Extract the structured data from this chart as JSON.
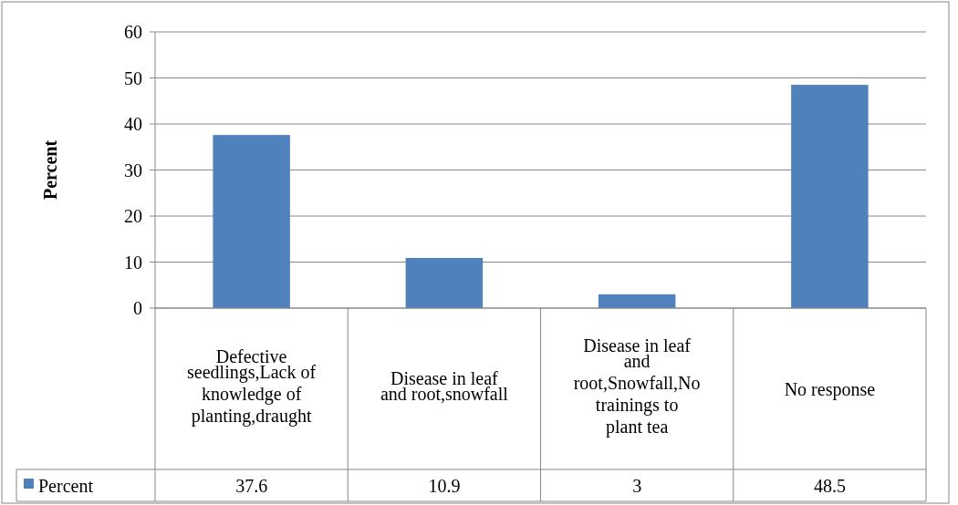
{
  "chart_data": {
    "type": "bar",
    "ylabel": "Percent",
    "categories": [
      "Defective seedlings,Lack of knowledge of planting,draught",
      "Disease in leaf and root,snowfall",
      "Disease in leaf and root,Snowfall,No trainings to plant tea",
      "No response"
    ],
    "series": [
      {
        "name": "Percent",
        "color": "#4f81bd",
        "values": [
          37.6,
          10.9,
          3,
          48.5
        ]
      }
    ],
    "ylim": [
      0,
      60
    ],
    "yticks": [
      0,
      10,
      20,
      30,
      40,
      50,
      60
    ],
    "grid": "y",
    "data_labels": true,
    "legend": "bottom"
  }
}
